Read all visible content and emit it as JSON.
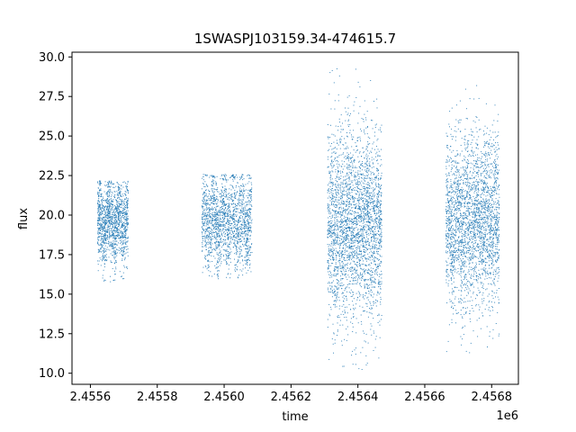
{
  "chart_data": {
    "type": "scatter",
    "title": "1SWASPJ103159.34-474615.7",
    "xlabel": "time",
    "ylabel": "flux",
    "x_offset_label": "1e6",
    "xlim": [
      2455545,
      2456880
    ],
    "ylim": [
      9.3,
      30.3
    ],
    "x_ticks": [
      2455600,
      2455800,
      2456000,
      2456200,
      2456400,
      2456600,
      2456800
    ],
    "x_tick_labels": [
      "2.4556",
      "2.4558",
      "2.4560",
      "2.4562",
      "2.4564",
      "2.4566",
      "2.4568"
    ],
    "y_ticks": [
      10.0,
      12.5,
      15.0,
      17.5,
      20.0,
      22.5,
      25.0,
      27.5,
      30.0
    ],
    "y_tick_labels": [
      "10.0",
      "12.5",
      "15.0",
      "17.5",
      "20.0",
      "22.5",
      "25.0",
      "27.5",
      "30.0"
    ],
    "grid": false,
    "marker_color": "#1f77b4",
    "segments": [
      {
        "x_start": 2455620,
        "x_end": 2455712,
        "center": 19.6,
        "spread": 1.3,
        "low": 15.8,
        "high": 22.2
      },
      {
        "x_start": 2455932,
        "x_end": 2456082,
        "center": 19.6,
        "spread": 1.4,
        "low": 16.0,
        "high": 22.6
      },
      {
        "x_start": 2456308,
        "x_end": 2456470,
        "center": 19.5,
        "spread": 3.0,
        "low": 10.2,
        "high": 29.3
      },
      {
        "x_start": 2456662,
        "x_end": 2456822,
        "center": 19.6,
        "spread": 2.7,
        "low": 10.2,
        "high": 29.3
      }
    ]
  }
}
